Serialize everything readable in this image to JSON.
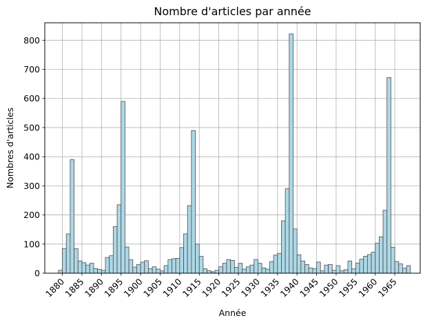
{
  "chart_data": {
    "type": "bar",
    "title": "Nombre d'articles par année",
    "xlabel": "Année",
    "ylabel": "Nombres d'articles",
    "start_year": 1879,
    "values": [
      10,
      85,
      135,
      390,
      84,
      42,
      36,
      28,
      34,
      16,
      13,
      10,
      54,
      60,
      160,
      235,
      590,
      90,
      46,
      21,
      30,
      38,
      43,
      16,
      22,
      14,
      8,
      26,
      46,
      50,
      51,
      88,
      135,
      232,
      490,
      100,
      58,
      15,
      9,
      5,
      10,
      22,
      34,
      47,
      44,
      20,
      34,
      14,
      22,
      28,
      47,
      34,
      18,
      14,
      40,
      62,
      68,
      180,
      290,
      822,
      152,
      63,
      42,
      30,
      18,
      15,
      38,
      8,
      28,
      30,
      10,
      26,
      8,
      12,
      42,
      15,
      35,
      48,
      58,
      64,
      72,
      103,
      125,
      216,
      672,
      89,
      40,
      32,
      17,
      26
    ],
    "peak_years": [
      1882,
      1895,
      1913,
      1938,
      1963
    ],
    "xlim": [
      1875.5,
      1971.5
    ],
    "ylim": [
      0,
      860
    ],
    "xticks": [
      1880,
      1885,
      1890,
      1895,
      1900,
      1905,
      1910,
      1915,
      1920,
      1925,
      1930,
      1935,
      1940,
      1945,
      1950,
      1955,
      1960,
      1965
    ],
    "xtick_labels": [
      "1880",
      "1885",
      "1890",
      "1895",
      "1900",
      "1905",
      "1910",
      "1915",
      "1920",
      "1925",
      "1930",
      "1935",
      "1940",
      "1945",
      "1950",
      "1955",
      "1960",
      "1965"
    ],
    "yticks": [
      0,
      100,
      200,
      300,
      400,
      500,
      600,
      700,
      800
    ],
    "ytick_labels": [
      "0",
      "100",
      "200",
      "300",
      "400",
      "500",
      "600",
      "700",
      "800"
    ],
    "grid": true,
    "legend": "none",
    "colors": {
      "bar_fill": "#add8e6",
      "bar_edge": "#4a4a4a",
      "grid": "#b0b0b0",
      "spine": "#000000",
      "background": "#ffffff"
    }
  }
}
